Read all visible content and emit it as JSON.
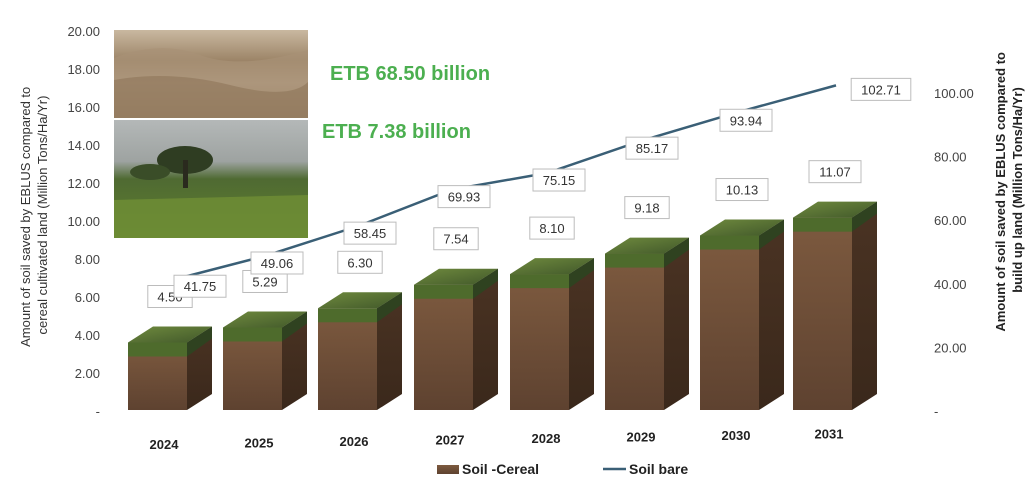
{
  "chart_data": {
    "type": "bar",
    "categories": [
      "2024",
      "2025",
      "2026",
      "2027",
      "2028",
      "2029",
      "2030",
      "2031"
    ],
    "series": [
      {
        "name": "Soil -Cereal",
        "type": "bar",
        "axis": "left",
        "values": [
          4.5,
          5.29,
          6.3,
          7.54,
          8.1,
          9.18,
          10.13,
          11.07
        ],
        "labels": [
          "4.50",
          "5.29",
          "6.30",
          "7.54",
          "8.10",
          "9.18",
          "10.13",
          "11.07"
        ]
      },
      {
        "name": "Soil bare",
        "type": "line",
        "axis": "right",
        "values": [
          41.75,
          49.06,
          58.45,
          69.93,
          75.15,
          85.17,
          93.94,
          102.71
        ],
        "labels": [
          "41.75",
          "49.06",
          "58.45",
          "69.93",
          "75.15",
          "85.17",
          "93.94",
          "102.71"
        ]
      }
    ],
    "ylabel": "Amount of soil saved by EBLUS compared to cereal cultivated land (Million Tons/Ha/Yr)",
    "ylabel_lines": [
      "Amount of soil saved by EBLUS compared to",
      "cereal cultivated land (Million Tons/Ha/Yr)"
    ],
    "y2label": "Amount of soil saved by EBLUS compared to build up land (Million Tons/Ha/Yr)",
    "y2label_lines": [
      "Amount of soil saved by EBLUS compared to",
      "build up land (Million Tons/Ha/Yr)"
    ],
    "ylim": [
      0,
      20
    ],
    "y2lim": [
      0,
      110
    ],
    "yticks": [
      "-",
      "2.00",
      "4.00",
      "6.00",
      "8.00",
      "10.00",
      "12.00",
      "14.00",
      "16.00",
      "18.00",
      "20.00"
    ],
    "y2ticks": [
      "-",
      "20.00",
      "40.00",
      "60.00",
      "80.00",
      "100.00"
    ],
    "annotations": [
      "ETB 68.50 billion",
      "ETB 7.38 billion"
    ],
    "legend": [
      "Soil -Cereal",
      "Soil bare"
    ],
    "legend_position": "bottom",
    "grid": false
  },
  "photos": [
    {
      "name": "bare-soil-photo"
    },
    {
      "name": "cereal-field-photo"
    }
  ],
  "colors": {
    "soil": "#6b4a33",
    "grass": "#4e6b2c",
    "line": "#3a5f76",
    "annotation": "#4caf50"
  }
}
